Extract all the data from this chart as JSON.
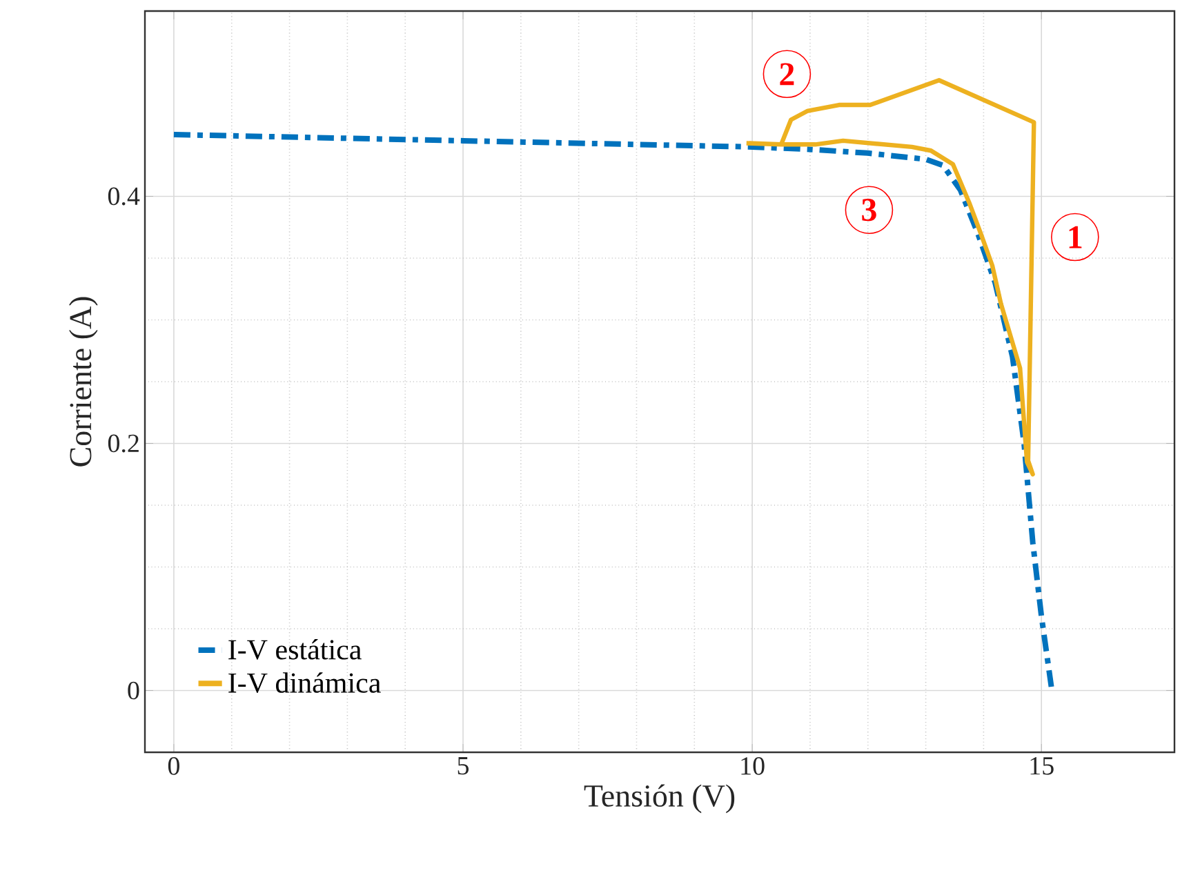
{
  "chart_data": {
    "type": "line",
    "xlabel": "Tensión (V)",
    "ylabel": "Corriente (A)",
    "xlim": [
      -0.5,
      17.3
    ],
    "ylim": [
      -0.05,
      0.55
    ],
    "xticks": [
      0,
      5,
      10,
      15
    ],
    "yticks": [
      0,
      0.2,
      0.4
    ],
    "grid": true,
    "legend": "bottom left",
    "series": [
      {
        "name": "I-V estática",
        "color": "#0072bd",
        "line_style": "dashdot",
        "x": [
          0,
          5,
          10,
          11,
          12,
          13,
          13.3,
          13.6,
          13.9,
          14.2,
          14.5,
          14.7,
          14.85,
          15.0,
          15.18
        ],
        "values": [
          0.45,
          0.445,
          0.44,
          0.438,
          0.435,
          0.43,
          0.425,
          0.405,
          0.37,
          0.33,
          0.27,
          0.2,
          0.12,
          0.06,
          0.0
        ]
      },
      {
        "name": "I-V dinámica",
        "color": "#edb120",
        "line_style": "solid",
        "x": [
          9.9,
          10.5,
          10.67,
          10.95,
          11.5,
          12.04,
          13.23,
          14.87,
          14.77,
          14.85,
          14.75,
          14.63,
          14.3,
          14.15,
          13.95,
          13.75,
          13.47,
          13.09,
          12.76,
          11.57,
          11.09,
          10.5,
          9.95
        ],
        "values": [
          0.443,
          0.442,
          0.462,
          0.469,
          0.474,
          0.474,
          0.494,
          0.46,
          0.186,
          0.175,
          0.185,
          0.261,
          0.313,
          0.344,
          0.37,
          0.395,
          0.426,
          0.437,
          0.44,
          0.445,
          0.442,
          0.442,
          0.443
        ]
      }
    ],
    "annotations": [
      {
        "text": "1",
        "x": 15.58,
        "y": 0.367
      },
      {
        "text": "2",
        "x": 10.6,
        "y": 0.499
      },
      {
        "text": "3",
        "x": 12.02,
        "y": 0.389
      }
    ]
  }
}
